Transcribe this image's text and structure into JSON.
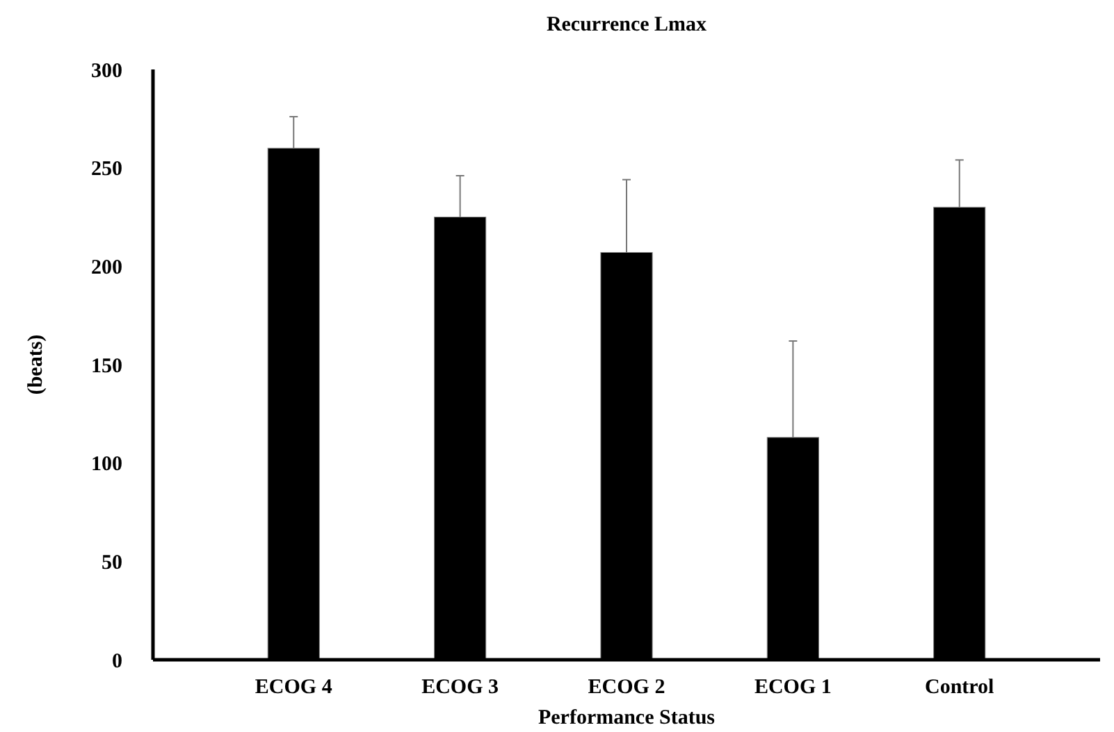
{
  "chart_data": {
    "type": "bar",
    "title": "Recurrence Lmax",
    "xlabel": "Performance Status",
    "ylabel": "(beats)",
    "categories": [
      "ECOG 4",
      "ECOG 3",
      "ECOG 2",
      "ECOG 1",
      "Control"
    ],
    "values": [
      260,
      225,
      207,
      113,
      230
    ],
    "errors": [
      [
        260,
        276
      ],
      [
        225,
        246
      ],
      [
        207,
        244
      ],
      [
        113,
        162
      ],
      [
        230,
        254
      ]
    ],
    "color": "#000000",
    "ylim": [
      0,
      300
    ],
    "yticks": [
      0,
      50,
      100,
      150,
      200,
      250,
      300
    ],
    "grid": false
  }
}
